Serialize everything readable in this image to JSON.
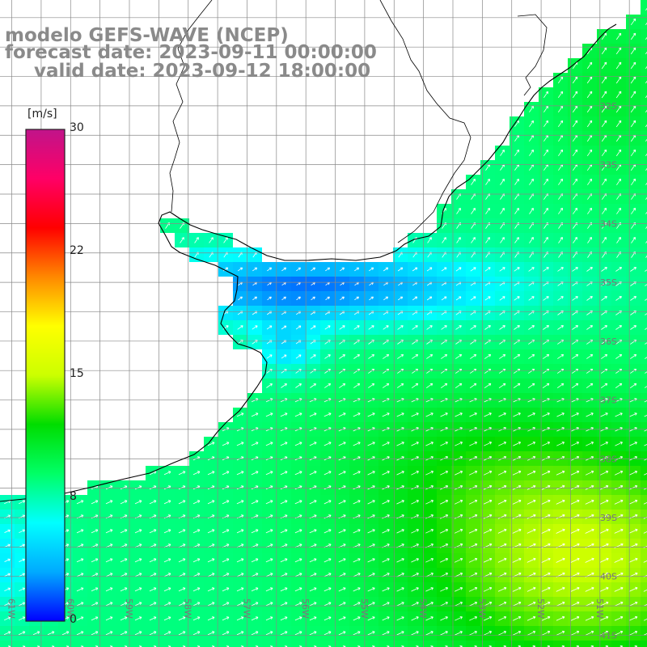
{
  "title": {
    "line1": "modelo GEFS-WAVE (NCEP)",
    "line2": "forecast date: 2023-09-11 00:00:00",
    "line3": "valid date: 2023-09-12 18:00:00"
  },
  "colorbar": {
    "units": "[m/s]",
    "min": 0,
    "max": 30,
    "ticks": [
      "30",
      "22",
      "15",
      "8",
      "0"
    ],
    "tick_values": [
      30,
      22,
      15,
      8,
      0
    ],
    "gradient_colors": [
      "#0000ff",
      "#00aaff",
      "#00ffff",
      "#00ff66",
      "#00dd00",
      "#ccff00",
      "#ffff00",
      "#ff8800",
      "#ff0000",
      "#ff0066",
      "#c0148a"
    ]
  },
  "map": {
    "lat_labels": [
      "32S",
      "33S",
      "34S",
      "35S",
      "36S",
      "37S",
      "38S",
      "39S",
      "40S",
      "41S"
    ],
    "lon_labels": [
      "61W",
      "60W",
      "59W",
      "58W",
      "57W",
      "56W",
      "55W",
      "54W",
      "53W",
      "52W",
      "51W"
    ],
    "extent": {
      "lon_min": -61.2,
      "lon_max": -50.2,
      "lat_min": -41.2,
      "lat_max": -30.2
    },
    "grid_color": "#888888",
    "coast_color": "#000000",
    "arrow_color": "#ffffff"
  }
}
